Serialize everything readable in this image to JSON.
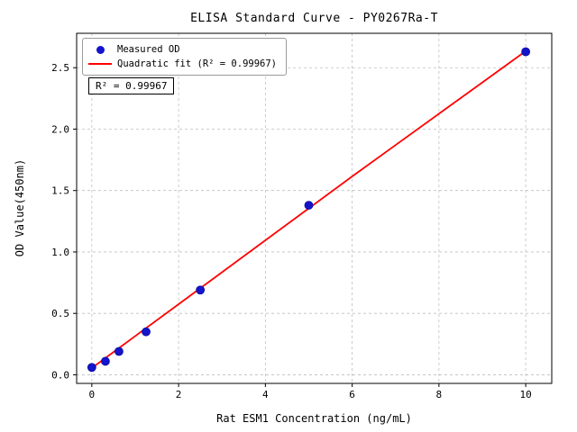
{
  "chart_data": {
    "type": "scatter",
    "title": "ELISA Standard Curve - PY0267Ra-T",
    "xlabel": "Rat ESM1 Concentration (ng/mL)",
    "ylabel": "OD Value(450nm)",
    "xlim": [
      -0.35,
      10.6
    ],
    "ylim": [
      -0.07,
      2.78
    ],
    "grid": true,
    "grid_style": "dashed",
    "legend_position": "upper left",
    "xticks": {
      "values": [
        0,
        2,
        4,
        6,
        8,
        10
      ],
      "labels": [
        "0",
        "2",
        "4",
        "6",
        "8",
        "10"
      ]
    },
    "yticks": {
      "values": [
        0.0,
        0.5,
        1.0,
        1.5,
        2.0,
        2.5
      ],
      "labels": [
        "0.0",
        "0.5",
        "1.0",
        "1.5",
        "2.0",
        "2.5"
      ]
    },
    "legend": [
      {
        "label": "Measured OD",
        "marker": "dot",
        "color": "#1414cc"
      },
      {
        "label": "Quadratic fit (R² = 0.99967)",
        "marker": "line",
        "color": "#ff0000"
      }
    ],
    "annotation": "R² = 0.99967",
    "r_squared": 0.99967,
    "series": [
      {
        "name": "Measured OD",
        "type": "scatter",
        "color": "#1414cc",
        "x": [
          0,
          0.313,
          0.625,
          1.25,
          2.5,
          5,
          10
        ],
        "y": [
          0.06,
          0.11,
          0.19,
          0.35,
          0.69,
          1.38,
          2.63
        ]
      },
      {
        "name": "Quadratic fit",
        "type": "line",
        "color": "#ff0000",
        "x": [
          0,
          1,
          2,
          3,
          4,
          5,
          6,
          7,
          8,
          9,
          10
        ],
        "y": [
          0.055,
          0.315,
          0.575,
          0.835,
          1.095,
          1.355,
          1.615,
          1.87,
          2.125,
          2.38,
          2.635
        ]
      }
    ]
  }
}
